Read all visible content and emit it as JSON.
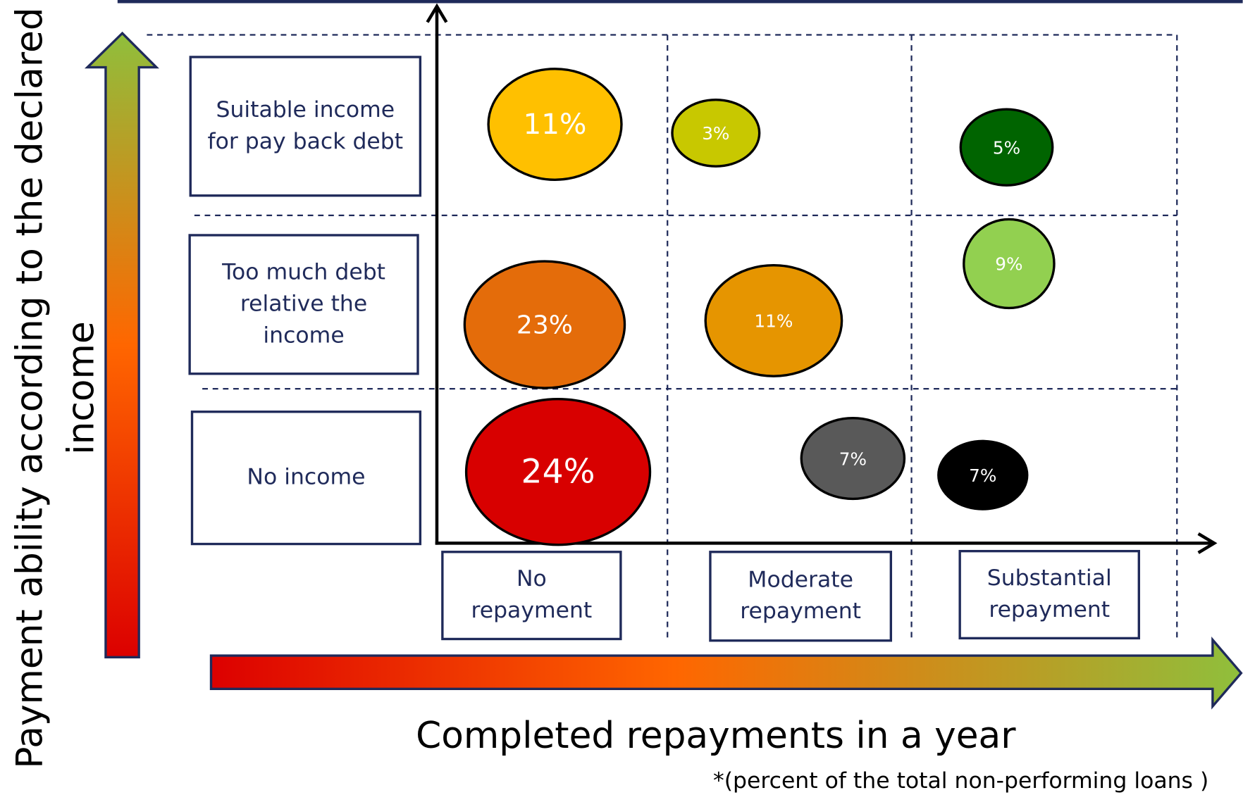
{
  "y_axis_label": [
    "Payment ability according to the declared",
    "income"
  ],
  "x_axis_label": "Completed repayments in a year",
  "footnote": "*(percent of the total non-performing loans )",
  "rows": [
    {
      "label": [
        "Suitable income",
        "for pay back debt"
      ]
    },
    {
      "label": [
        "Too much debt",
        "relative the",
        "income"
      ]
    },
    {
      "label": [
        "No income"
      ]
    }
  ],
  "columns": [
    {
      "label": [
        "No",
        "repayment"
      ]
    },
    {
      "label": [
        "Moderate",
        "repayment"
      ]
    },
    {
      "label": [
        "Substantial",
        "repayment"
      ]
    }
  ],
  "bubbles": [
    {
      "label": "11%",
      "color": "#ffc000"
    },
    {
      "label": "3%",
      "color": "#c8c800"
    },
    {
      "label": "5%",
      "color": "#006400"
    },
    {
      "label": "9%",
      "color": "#92d050"
    },
    {
      "label": "23%",
      "color": "#e46c0a"
    },
    {
      "label": "11%",
      "color": "#e69500"
    },
    {
      "label": "24%",
      "color": "#d80000"
    },
    {
      "label": "7%",
      "color": "#595959"
    },
    {
      "label": "7%",
      "color": "#000000"
    }
  ]
}
